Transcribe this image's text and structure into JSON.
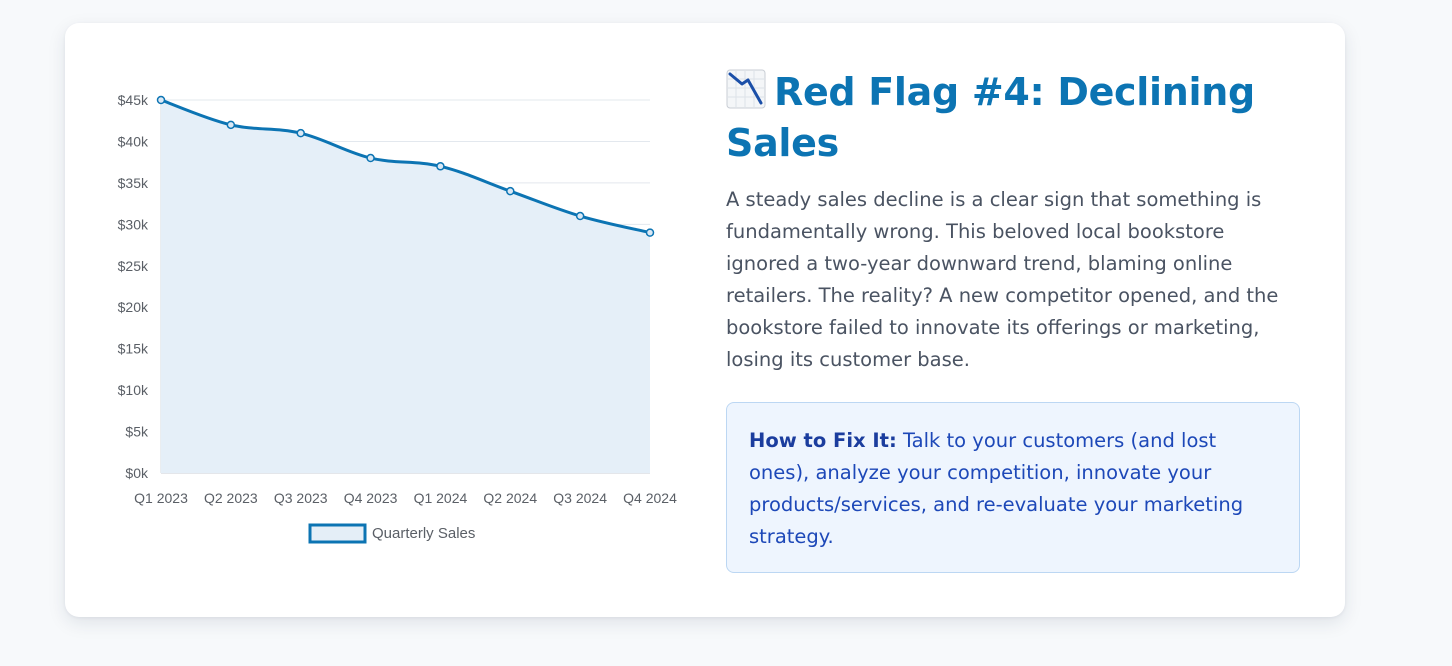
{
  "colors": {
    "accent": "#0c74b3",
    "fill": "#e5eff8",
    "grid": "#e3e8ee",
    "text": "#4a5362",
    "fix_text": "#1d48b8"
  },
  "content": {
    "title_icon": "chart-decreasing-icon",
    "title": "Red Flag #4: Declining Sales",
    "body": "A steady sales decline is a clear sign that something is fundamentally wrong. This beloved local bookstore ignored a two-year downward trend, blaming online retailers. The reality? A new competitor opened, and the bookstore failed to innovate its offerings or marketing, losing its customer base.",
    "fix_label": "How to Fix It:",
    "fix_text": "Talk to your customers (and lost ones), analyze your competition, innovate your products/services, and re-evaluate your marketing strategy."
  },
  "chart_data": {
    "type": "area",
    "title": "",
    "xlabel": "",
    "ylabel": "",
    "categories": [
      "Q1 2023",
      "Q2 2023",
      "Q3 2023",
      "Q4 2023",
      "Q1 2024",
      "Q2 2024",
      "Q3 2024",
      "Q4 2024"
    ],
    "series": [
      {
        "name": "Quarterly Sales",
        "values": [
          45000,
          42000,
          41000,
          38000,
          37000,
          34000,
          31000,
          29000
        ]
      }
    ],
    "ylim": [
      0,
      45000
    ],
    "y_ticks": [
      0,
      5000,
      10000,
      15000,
      20000,
      25000,
      30000,
      35000,
      40000,
      45000
    ],
    "y_tick_labels": [
      "$0k",
      "$5k",
      "$10k",
      "$15k",
      "$20k",
      "$25k",
      "$30k",
      "$35k",
      "$40k",
      "$45k"
    ],
    "grid": true,
    "legend": "bottom-center"
  }
}
